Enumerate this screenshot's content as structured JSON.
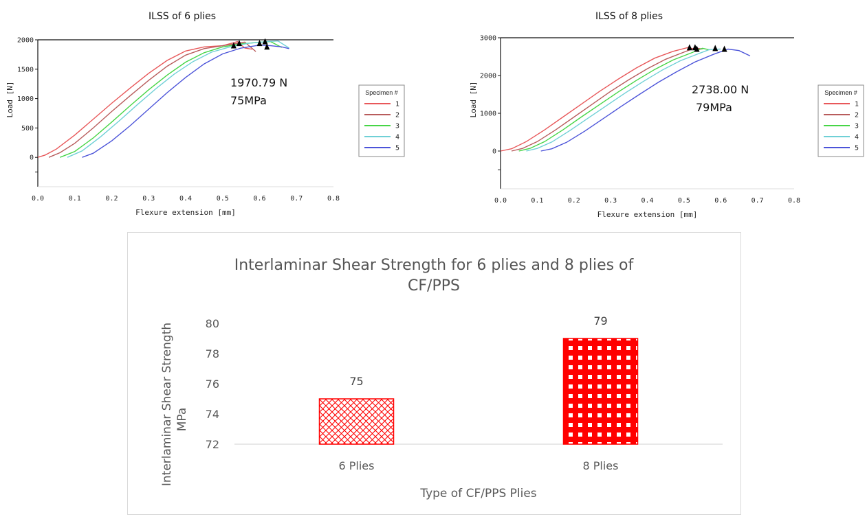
{
  "chart_data": [
    {
      "type": "line",
      "title": "ILSS of 6 plies",
      "xlabel": "Flexure extension [mm]",
      "ylabel": "Load [N]",
      "xlim": [
        0.0,
        0.8
      ],
      "ylim": [
        -500,
        2000
      ],
      "xticks": [
        "0.0",
        "0.1",
        "0.2",
        "0.3",
        "0.4",
        "0.5",
        "0.6",
        "0.7",
        "0.8"
      ],
      "yticks": [
        "0",
        "500",
        "1000",
        "1500",
        "2000"
      ],
      "annotations": [
        "1970.79 N",
        "75MPa"
      ],
      "legend": {
        "title": "Specimen #",
        "placement": "right"
      },
      "series": [
        {
          "name": "1",
          "color": "#e8585a",
          "x": [
            0.0,
            0.02,
            0.05,
            0.1,
            0.15,
            0.2,
            0.25,
            0.3,
            0.35,
            0.4,
            0.45,
            0.5,
            0.54,
            0.56,
            0.58
          ],
          "y": [
            0,
            40,
            140,
            380,
            650,
            920,
            1180,
            1430,
            1650,
            1810,
            1880,
            1900,
            1970,
            1860,
            1840
          ]
        },
        {
          "name": "2",
          "color": "#b85c5c",
          "x": [
            0.03,
            0.06,
            0.1,
            0.15,
            0.2,
            0.25,
            0.3,
            0.35,
            0.4,
            0.45,
            0.5,
            0.53,
            0.56,
            0.59
          ],
          "y": [
            0,
            80,
            240,
            500,
            780,
            1050,
            1310,
            1550,
            1740,
            1850,
            1900,
            1930,
            1960,
            1800
          ]
        },
        {
          "name": "3",
          "color": "#46d546",
          "x": [
            0.06,
            0.1,
            0.15,
            0.2,
            0.25,
            0.3,
            0.35,
            0.4,
            0.45,
            0.5,
            0.55,
            0.6,
            0.63,
            0.66
          ],
          "y": [
            0,
            100,
            330,
            600,
            880,
            1150,
            1400,
            1620,
            1780,
            1880,
            1930,
            1960,
            1970,
            1870
          ]
        },
        {
          "name": "4",
          "color": "#6fd0d6",
          "x": [
            0.08,
            0.12,
            0.17,
            0.22,
            0.27,
            0.32,
            0.37,
            0.42,
            0.47,
            0.52,
            0.57,
            0.62,
            0.65,
            0.68
          ],
          "y": [
            0,
            110,
            350,
            620,
            900,
            1170,
            1420,
            1630,
            1790,
            1880,
            1940,
            1970,
            1980,
            1860
          ]
        },
        {
          "name": "5",
          "color": "#4c54d9",
          "x": [
            0.12,
            0.15,
            0.2,
            0.25,
            0.3,
            0.35,
            0.4,
            0.45,
            0.5,
            0.55,
            0.6,
            0.63,
            0.66,
            0.68
          ],
          "y": [
            0,
            70,
            280,
            540,
            820,
            1100,
            1360,
            1590,
            1760,
            1860,
            1910,
            1900,
            1880,
            1850
          ]
        }
      ],
      "markers": [
        {
          "x": 0.53,
          "y": 1900
        },
        {
          "x": 0.545,
          "y": 1940
        },
        {
          "x": 0.6,
          "y": 1940
        },
        {
          "x": 0.615,
          "y": 1970
        },
        {
          "x": 0.62,
          "y": 1880
        }
      ]
    },
    {
      "type": "line",
      "title": "ILSS of 8 plies",
      "xlabel": "Flexure extension [mm]",
      "ylabel": "Load [N]",
      "xlim": [
        0.0,
        0.8
      ],
      "ylim": [
        -1000,
        3000
      ],
      "xticks": [
        "0.0",
        "0.1",
        "0.2",
        "0.3",
        "0.4",
        "0.5",
        "0.6",
        "0.7",
        "0.8"
      ],
      "yticks": [
        "0",
        "1000",
        "2000",
        "3000"
      ],
      "annotations": [
        "2738.00 N",
        "79MPa"
      ],
      "legend": {
        "title": "Specimen #",
        "placement": "right"
      },
      "series": [
        {
          "name": "1",
          "color": "#e8585a",
          "x": [
            0.0,
            0.03,
            0.07,
            0.12,
            0.17,
            0.22,
            0.27,
            0.32,
            0.37,
            0.42,
            0.47,
            0.51,
            0.53
          ],
          "y": [
            0,
            60,
            250,
            560,
            900,
            1240,
            1580,
            1900,
            2200,
            2460,
            2640,
            2740,
            2700
          ]
        },
        {
          "name": "2",
          "color": "#b85c5c",
          "x": [
            0.03,
            0.06,
            0.1,
            0.15,
            0.2,
            0.25,
            0.3,
            0.35,
            0.4,
            0.45,
            0.5,
            0.53,
            0.55
          ],
          "y": [
            0,
            70,
            250,
            560,
            900,
            1240,
            1580,
            1890,
            2180,
            2430,
            2620,
            2730,
            2700
          ]
        },
        {
          "name": "3",
          "color": "#46d546",
          "x": [
            0.05,
            0.08,
            0.12,
            0.17,
            0.22,
            0.27,
            0.32,
            0.37,
            0.42,
            0.47,
            0.52,
            0.55,
            0.57
          ],
          "y": [
            0,
            70,
            250,
            560,
            900,
            1230,
            1560,
            1870,
            2160,
            2410,
            2600,
            2720,
            2680
          ]
        },
        {
          "name": "4",
          "color": "#6fd0d6",
          "x": [
            0.07,
            0.1,
            0.14,
            0.19,
            0.24,
            0.29,
            0.34,
            0.39,
            0.44,
            0.49,
            0.54,
            0.57,
            0.6
          ],
          "y": [
            0,
            70,
            240,
            550,
            880,
            1210,
            1540,
            1850,
            2140,
            2390,
            2580,
            2690,
            2700
          ]
        },
        {
          "name": "5",
          "color": "#4c54d9",
          "x": [
            0.11,
            0.14,
            0.18,
            0.23,
            0.28,
            0.33,
            0.38,
            0.43,
            0.48,
            0.53,
            0.58,
            0.62,
            0.65,
            0.68
          ],
          "y": [
            0,
            60,
            230,
            530,
            860,
            1190,
            1510,
            1820,
            2100,
            2360,
            2560,
            2700,
            2660,
            2520
          ]
        }
      ],
      "markers": [
        {
          "x": 0.515,
          "y": 2740
        },
        {
          "x": 0.53,
          "y": 2740
        },
        {
          "x": 0.535,
          "y": 2700
        },
        {
          "x": 0.585,
          "y": 2720
        },
        {
          "x": 0.61,
          "y": 2700
        }
      ]
    },
    {
      "type": "bar",
      "title": "Interlaminar Shear Strength for 6 plies and 8 plies of CF/PPS",
      "xlabel": "Type of CF/PPS Plies",
      "ylabel": "Interlaminar Shear Strength MPa",
      "categories": [
        "6 Plies",
        "8 Plies"
      ],
      "values": [
        75,
        79
      ],
      "data_labels": [
        "75",
        "79"
      ],
      "ylim": [
        72,
        80
      ],
      "yticks": [
        "72",
        "74",
        "76",
        "78",
        "80"
      ],
      "colors": [
        "#ff0000",
        "#ff0000"
      ],
      "grid": false
    }
  ]
}
